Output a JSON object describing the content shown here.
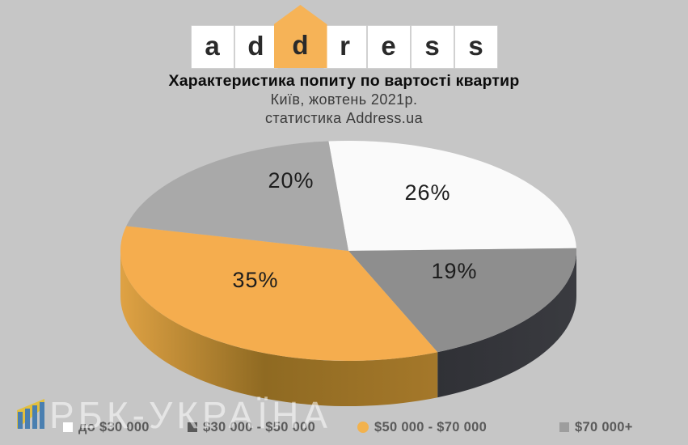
{
  "logo": {
    "letters": [
      "a",
      "d",
      "d",
      "r",
      "e",
      "s",
      "s"
    ],
    "house_index": 2,
    "house_color": "#f6b357"
  },
  "chart_data": {
    "type": "pie",
    "style": "3d",
    "title": "Характеристика попиту по вартості квартир",
    "subtitle": "Київ, жовтень 2021р.",
    "source_note": "статистика Address.ua",
    "value_unit": "%",
    "labels_shown_as": "percent",
    "start_angle_deg": -5,
    "legend_position": "bottom",
    "slices": [
      {
        "label": "до $30 000",
        "value": 26,
        "color": "#fafafa",
        "marker": "square",
        "marker_color": "#ffffff"
      },
      {
        "label": "$30 000 - $50 000",
        "value": 19,
        "color": "#8e8e8e",
        "marker": "square",
        "marker_color": "#595959"
      },
      {
        "label": "$50 000 - $70 000",
        "value": 35,
        "color": "#f5ad4e",
        "marker": "circle",
        "marker_color": "#f2b24e"
      },
      {
        "label": "$70 000+",
        "value": 20,
        "color": "#a9a9a9",
        "marker": "square",
        "marker_color": "#9d9d9d"
      }
    ]
  },
  "watermark": {
    "text": "РБК-УКРАЇНА",
    "icon": "rbc-ukraine-bars-logo"
  },
  "colors": {
    "background": "#c6c6c6",
    "accent_orange": "#f5ad4e",
    "side_wall_dark": "#333438"
  }
}
